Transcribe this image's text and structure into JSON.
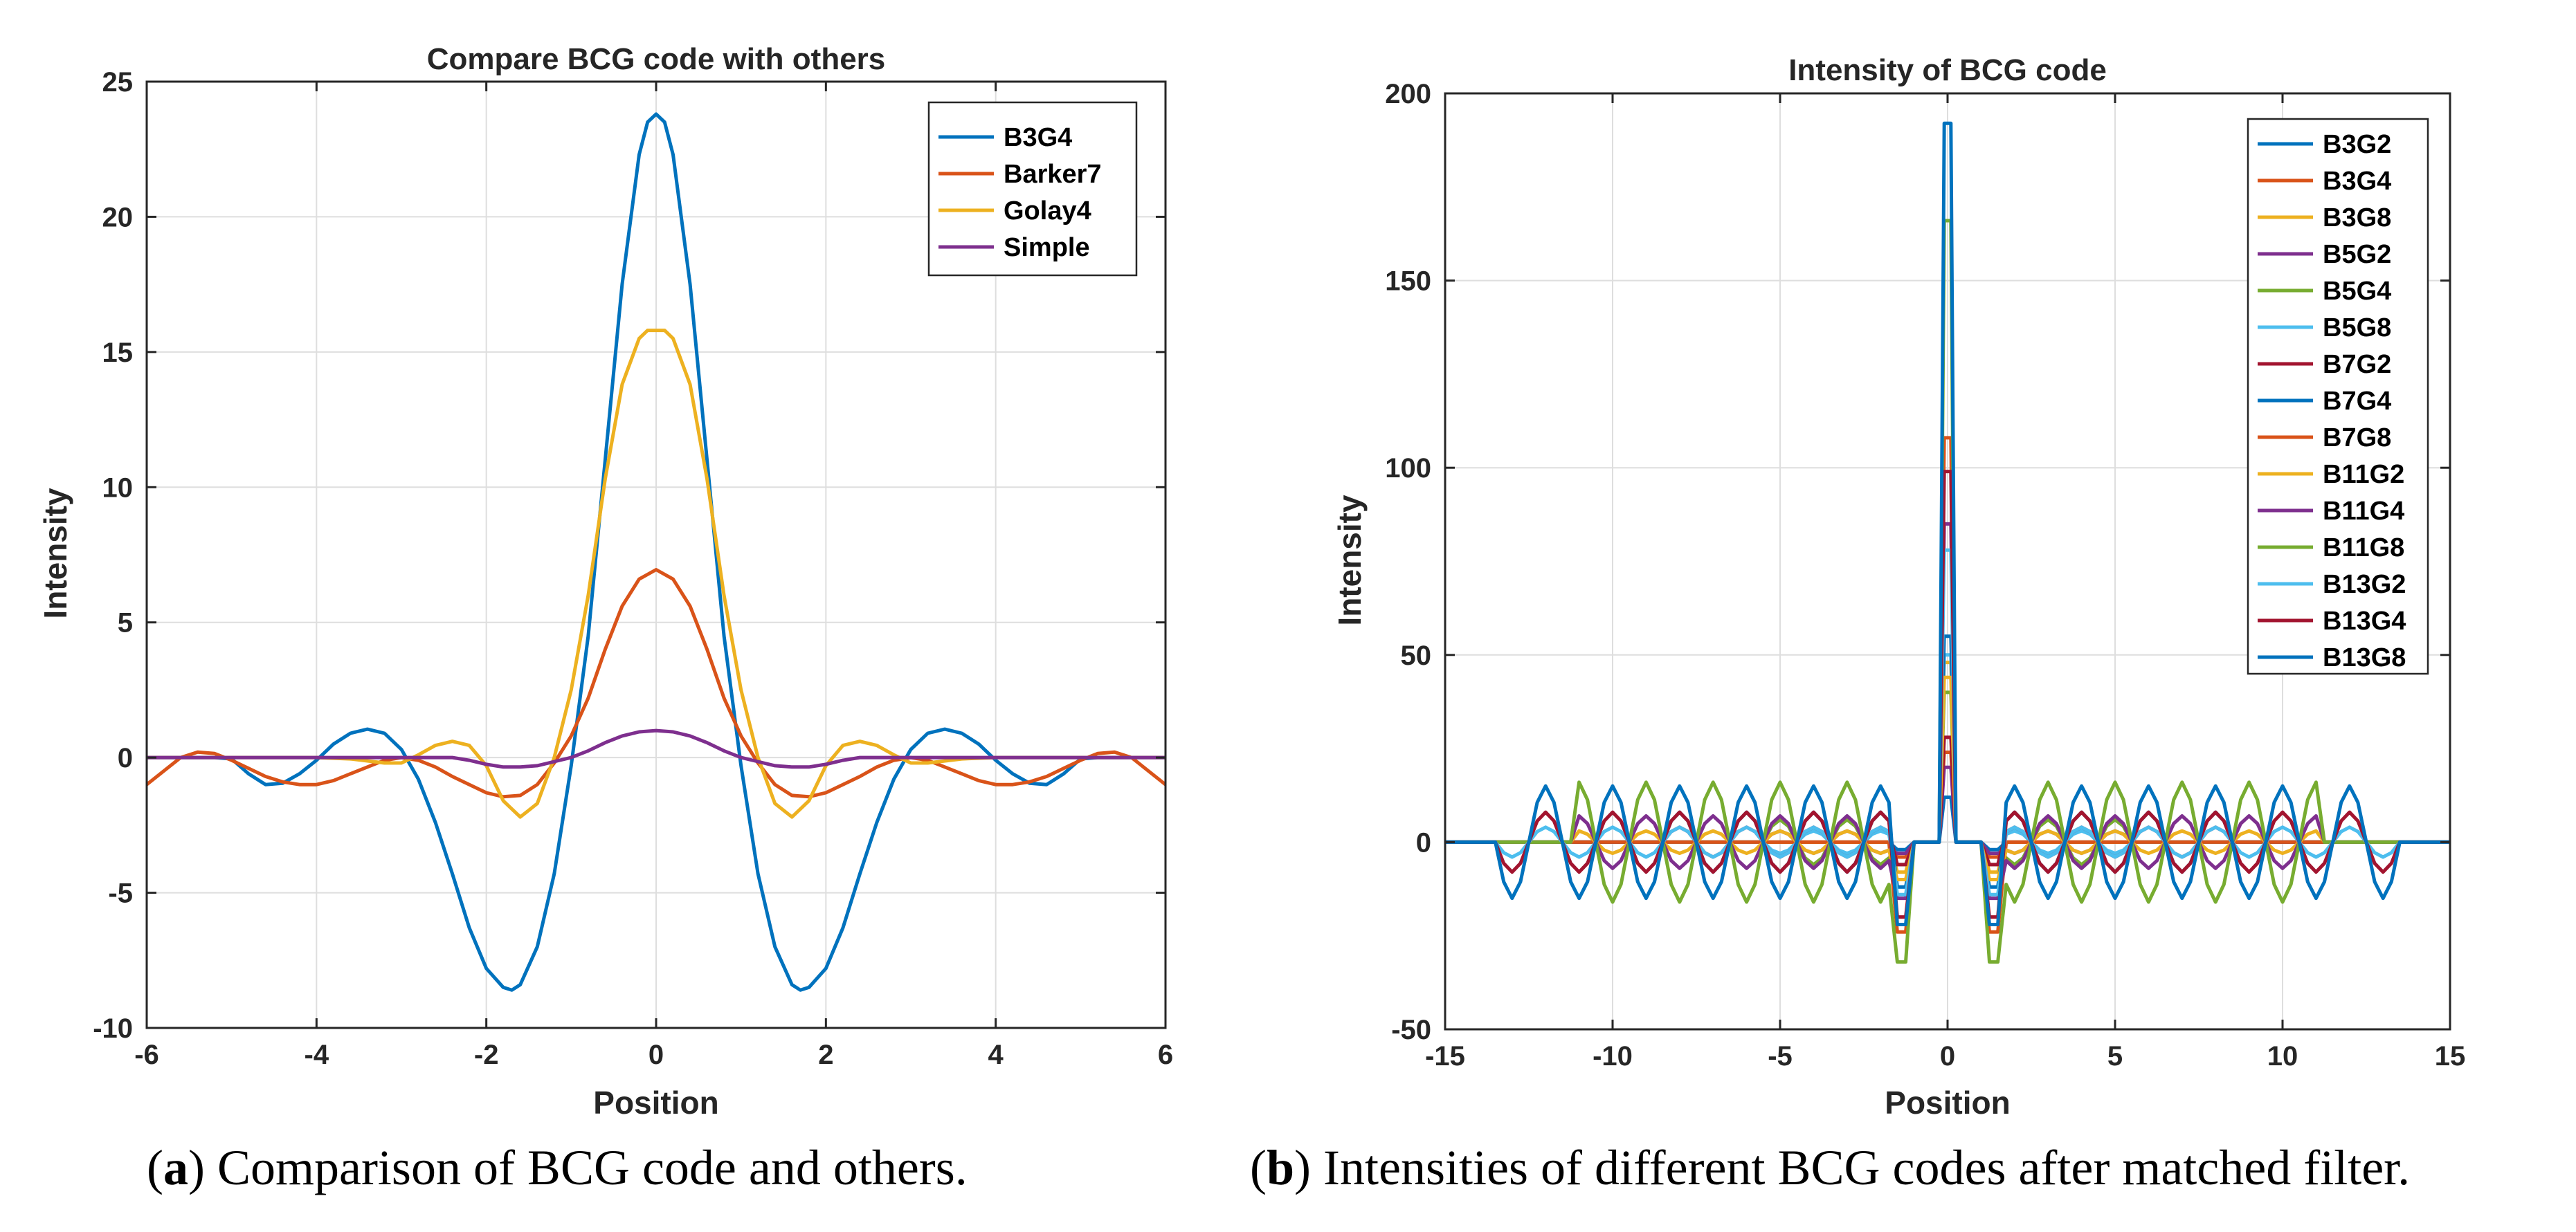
{
  "chart_data": [
    {
      "type": "line",
      "title": "Compare BCG code with others",
      "xlabel": "Position",
      "ylabel": "Intensity",
      "xlim": [
        -6,
        6
      ],
      "ylim": [
        -10,
        25
      ],
      "xticks": [
        -6,
        -4,
        -2,
        0,
        2,
        4,
        6
      ],
      "yticks": [
        -10,
        -5,
        0,
        5,
        10,
        15,
        20,
        25
      ],
      "grid": true,
      "legend_position": "top-right",
      "series": [
        {
          "name": "B3G4",
          "color": "#0072BD",
          "x": [
            -6,
            -5.5,
            -5.2,
            -5.0,
            -4.8,
            -4.6,
            -4.4,
            -4.2,
            -4.0,
            -3.8,
            -3.6,
            -3.4,
            -3.2,
            -3.0,
            -2.8,
            -2.6,
            -2.4,
            -2.2,
            -2.0,
            -1.8,
            -1.7,
            -1.6,
            -1.4,
            -1.2,
            -1.0,
            -0.8,
            -0.6,
            -0.4,
            -0.2,
            -0.1,
            0,
            0.1,
            0.2,
            0.4,
            0.6,
            0.8,
            1.0,
            1.2,
            1.4,
            1.6,
            1.7,
            1.8,
            2.0,
            2.2,
            2.4,
            2.6,
            2.8,
            3.0,
            3.2,
            3.4,
            3.6,
            3.8,
            4.0,
            4.2,
            4.4,
            4.6,
            4.8,
            5.0,
            5.2,
            5.5,
            6
          ],
          "y": [
            0,
            0,
            0,
            -0.05,
            -0.6,
            -1.0,
            -0.95,
            -0.6,
            -0.1,
            0.5,
            0.9,
            1.05,
            0.9,
            0.3,
            -0.8,
            -2.4,
            -4.3,
            -6.3,
            -7.8,
            -8.5,
            -8.6,
            -8.4,
            -7.0,
            -4.3,
            -0.3,
            4.5,
            11.0,
            17.5,
            22.3,
            23.5,
            23.8,
            23.5,
            22.3,
            17.5,
            11.0,
            4.5,
            -0.3,
            -4.3,
            -7.0,
            -8.4,
            -8.6,
            -8.5,
            -7.8,
            -6.3,
            -4.3,
            -2.4,
            -0.8,
            0.3,
            0.9,
            1.05,
            0.9,
            0.5,
            -0.1,
            -0.6,
            -0.95,
            -1.0,
            -0.6,
            -0.05,
            0,
            0,
            0
          ]
        },
        {
          "name": "Barker7",
          "color": "#D95319",
          "x": [
            -6,
            -5.8,
            -5.6,
            -5.4,
            -5.2,
            -5.0,
            -4.8,
            -4.6,
            -4.4,
            -4.2,
            -4.0,
            -3.8,
            -3.6,
            -3.4,
            -3.2,
            -3.0,
            -2.8,
            -2.6,
            -2.4,
            -2.2,
            -2.0,
            -1.8,
            -1.6,
            -1.4,
            -1.2,
            -1.0,
            -0.8,
            -0.6,
            -0.4,
            -0.2,
            0,
            0.2,
            0.4,
            0.6,
            0.8,
            1.0,
            1.2,
            1.4,
            1.6,
            1.8,
            2.0,
            2.2,
            2.4,
            2.6,
            2.8,
            3.0,
            3.2,
            3.4,
            3.6,
            3.8,
            4.0,
            4.2,
            4.4,
            4.6,
            4.8,
            5.0,
            5.2,
            5.4,
            5.6,
            5.8,
            6
          ],
          "y": [
            -1.0,
            -0.5,
            0.0,
            0.2,
            0.15,
            -0.1,
            -0.4,
            -0.7,
            -0.9,
            -1.0,
            -1.0,
            -0.85,
            -0.6,
            -0.35,
            -0.1,
            0.0,
            -0.1,
            -0.35,
            -0.7,
            -1.0,
            -1.3,
            -1.45,
            -1.4,
            -1.0,
            -0.2,
            0.8,
            2.2,
            4.0,
            5.6,
            6.6,
            6.95,
            6.6,
            5.6,
            4.0,
            2.2,
            0.8,
            -0.2,
            -1.0,
            -1.4,
            -1.45,
            -1.3,
            -1.0,
            -0.7,
            -0.35,
            -0.1,
            0.0,
            -0.1,
            -0.35,
            -0.6,
            -0.85,
            -1.0,
            -1.0,
            -0.9,
            -0.7,
            -0.4,
            -0.1,
            0.15,
            0.2,
            0.0,
            -0.5,
            -1.0
          ]
        },
        {
          "name": "Golay4",
          "color": "#EDB120",
          "x": [
            -6,
            -4.0,
            -3.6,
            -3.2,
            -3.0,
            -2.8,
            -2.6,
            -2.4,
            -2.2,
            -2.0,
            -1.8,
            -1.6,
            -1.4,
            -1.2,
            -1.0,
            -0.8,
            -0.6,
            -0.4,
            -0.2,
            -0.1,
            0,
            0.1,
            0.2,
            0.4,
            0.6,
            0.8,
            1.0,
            1.2,
            1.4,
            1.6,
            1.8,
            2.0,
            2.2,
            2.4,
            2.6,
            2.8,
            3.0,
            3.2,
            3.6,
            4.0,
            6
          ],
          "y": [
            0,
            0,
            -0.05,
            -0.2,
            -0.2,
            0.1,
            0.45,
            0.6,
            0.45,
            -0.3,
            -1.6,
            -2.2,
            -1.7,
            0.0,
            2.5,
            6.0,
            10.3,
            13.8,
            15.5,
            15.8,
            15.8,
            15.8,
            15.5,
            13.8,
            10.3,
            6.0,
            2.5,
            0.0,
            -1.7,
            -2.2,
            -1.6,
            -0.3,
            0.45,
            0.6,
            0.45,
            0.1,
            -0.2,
            -0.2,
            -0.05,
            0,
            0
          ]
        },
        {
          "name": "Simple",
          "color": "#7E2F8E",
          "x": [
            -6,
            -2.4,
            -2.2,
            -2.0,
            -1.8,
            -1.6,
            -1.4,
            -1.2,
            -1.0,
            -0.8,
            -0.6,
            -0.4,
            -0.2,
            0,
            0.2,
            0.4,
            0.6,
            0.8,
            1.0,
            1.2,
            1.4,
            1.6,
            1.8,
            2.0,
            2.2,
            2.4,
            6
          ],
          "y": [
            0,
            0,
            -0.1,
            -0.25,
            -0.35,
            -0.35,
            -0.3,
            -0.15,
            0.0,
            0.25,
            0.55,
            0.8,
            0.95,
            1.0,
            0.95,
            0.8,
            0.55,
            0.25,
            0.0,
            -0.15,
            -0.3,
            -0.35,
            -0.35,
            -0.25,
            -0.1,
            0,
            0
          ]
        }
      ]
    },
    {
      "type": "line",
      "title": "Intensity of BCG code",
      "xlabel": "Position",
      "ylabel": "Intensity",
      "xlim": [
        -15,
        15
      ],
      "ylim": [
        -50,
        200
      ],
      "xticks": [
        -15,
        -10,
        -5,
        0,
        5,
        10,
        15
      ],
      "yticks": [
        -50,
        0,
        50,
        100,
        150,
        200
      ],
      "grid": true,
      "legend_position": "top-right",
      "series": [
        {
          "name": "B3G2",
          "color": "#0072BD",
          "peak": 12,
          "osc": 0,
          "dip": 2,
          "taper": 1.5
        },
        {
          "name": "B3G4",
          "color": "#D95319",
          "peak": 24,
          "osc": 0,
          "dip": 4,
          "taper": 1.5
        },
        {
          "name": "B3G8",
          "color": "#EDB120",
          "peak": 48,
          "osc": 0,
          "dip": 8,
          "taper": 1.5
        },
        {
          "name": "B5G2",
          "color": "#7E2F8E",
          "peak": 20,
          "osc": -3,
          "dip": 3,
          "taper": 5.5
        },
        {
          "name": "B5G4",
          "color": "#77AC30",
          "peak": 40,
          "osc": -6,
          "dip": 6,
          "taper": 5.5
        },
        {
          "name": "B5G8",
          "color": "#4DBEEE",
          "peak": 50,
          "osc": 3,
          "dip": 12,
          "taper": 5.5
        },
        {
          "name": "B7G2",
          "color": "#A2142F",
          "peak": 28,
          "osc": 4,
          "dip": 6,
          "taper": 8.5
        },
        {
          "name": "B7G4",
          "color": "#0072BD",
          "peak": 55,
          "osc": 8,
          "dip": 12,
          "taper": 8.5
        },
        {
          "name": "B7G8",
          "color": "#D95319",
          "peak": 108,
          "osc": 0,
          "dip": 24,
          "taper": 8.5
        },
        {
          "name": "B11G2",
          "color": "#EDB120",
          "peak": 44,
          "osc": -3,
          "dip": 10,
          "taper": 11
        },
        {
          "name": "B11G4",
          "color": "#7E2F8E",
          "peak": 85,
          "osc": -7,
          "dip": 15,
          "taper": 11
        },
        {
          "name": "B11G8",
          "color": "#77AC30",
          "peak": 166,
          "osc": -16,
          "dip": 32,
          "taper": 11
        },
        {
          "name": "B13G2",
          "color": "#4DBEEE",
          "peak": 78,
          "osc": 4,
          "dip": 14,
          "taper": 13.5
        },
        {
          "name": "B13G4",
          "color": "#A2142F",
          "peak": 99,
          "osc": 8,
          "dip": 20,
          "taper": 13.5
        },
        {
          "name": "B13G8",
          "color": "#0072BD",
          "peak": 192,
          "osc": 15,
          "dip": 22,
          "taper": 13.5
        }
      ]
    }
  ],
  "captions": {
    "a_label": "a",
    "a_text": " Comparison of BCG code and others.",
    "b_label": "b",
    "b_text": " Intensities of different BCG codes after matched filter."
  }
}
